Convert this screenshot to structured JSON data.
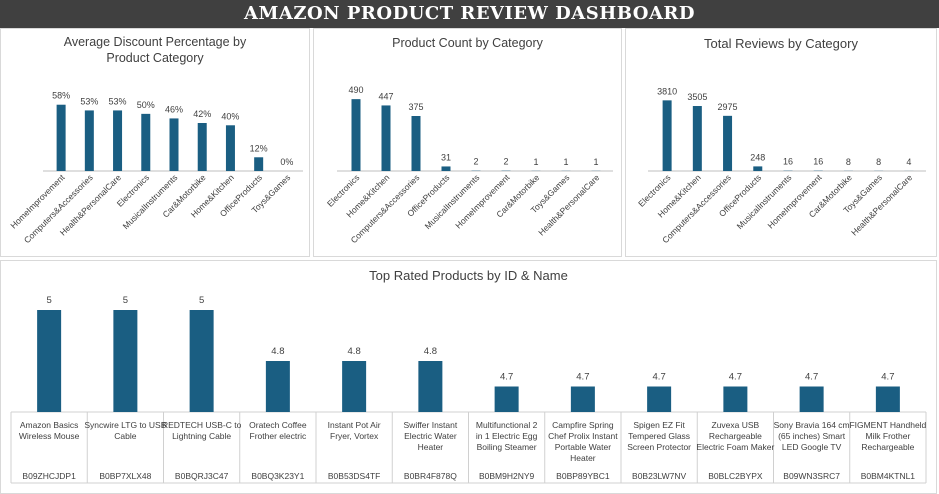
{
  "dashboard": {
    "title": "AMAZON PRODUCT REVIEW DASHBOARD"
  },
  "colors": {
    "bar": "#1a5e82",
    "title_bg": "#404040"
  },
  "chart_data": [
    {
      "id": "discount",
      "type": "bar",
      "title": "Average Discount Percentage by Product Category",
      "categories": [
        "HomeImprovement",
        "Computers&Accessories",
        "Health&PersonalCare",
        "Electronics",
        "MusicalInstruments",
        "Car&Motorbike",
        "Home&Kitchen",
        "OfficeProducts",
        "Toys&Games"
      ],
      "values": [
        58,
        53,
        53,
        50,
        46,
        42,
        40,
        12,
        0
      ],
      "labels": [
        "58%",
        "53%",
        "53%",
        "50%",
        "46%",
        "42%",
        "40%",
        "12%",
        "0%"
      ],
      "ylim": [
        0,
        70
      ],
      "grid": false,
      "legend": "none"
    },
    {
      "id": "count",
      "type": "bar",
      "title": "Product Count by  Category",
      "categories": [
        "Electronics",
        "Home&Kitchen",
        "Computers&Accessories",
        "OfficeProducts",
        "MusicalInstruments",
        "HomeImprovement",
        "Car&Motorbike",
        "Toys&Games",
        "Health&PersonalCare"
      ],
      "values": [
        490,
        447,
        375,
        31,
        2,
        2,
        1,
        1,
        1
      ],
      "labels": [
        "490",
        "447",
        "375",
        "31",
        "2",
        "2",
        "1",
        "1",
        "1"
      ],
      "ylim": [
        0,
        600
      ],
      "grid": false,
      "legend": "none"
    },
    {
      "id": "reviews",
      "type": "bar",
      "title": "Total Reviews by  Category",
      "categories": [
        "Electronics",
        "Home&Kitchen",
        "Computers&Accessories",
        "OfficeProducts",
        "MusicalInstruments",
        "HomeImprovement",
        "Car&Motorbike",
        "Toys&Games",
        "Health&PersonalCare"
      ],
      "values": [
        3810,
        3505,
        2975,
        248,
        16,
        16,
        8,
        8,
        4
      ],
      "labels": [
        "3810",
        "3505",
        "2975",
        "248",
        "16",
        "16",
        "8",
        "8",
        "4"
      ],
      "ylim": [
        0,
        4800
      ],
      "grid": false,
      "legend": "none"
    },
    {
      "id": "top",
      "type": "bar",
      "title": "Top Rated Products by ID & Name",
      "categories": [
        {
          "name": "Amazon Basics Wireless Mouse",
          "id": "B09ZHCJDP1"
        },
        {
          "name": "Syncwire LTG to USB Cable",
          "id": "B0BP7XLX48"
        },
        {
          "name": "REDTECH USB-C to Lightning Cable",
          "id": "B0BQRJ3C47"
        },
        {
          "name": "Oratech Coffee Frother electric",
          "id": "B0BQ3K23Y1"
        },
        {
          "name": "Instant Pot Air Fryer, Vortex",
          "id": "B0B53DS4TF"
        },
        {
          "name": "Swiffer Instant Electric Water Heater",
          "id": "B0BR4F878Q"
        },
        {
          "name": "Multifunctional 2 in 1 Electric Egg Boiling Steamer",
          "id": "B0BM9H2NY9"
        },
        {
          "name": "Campfire Spring Chef Prolix Instant Portable Water Heater",
          "id": "B0BP89YBC1"
        },
        {
          "name": "Spigen EZ Fit Tempered Glass Screen Protector",
          "id": "B0B23LW7NV"
        },
        {
          "name": "Zuvexa USB Rechargeable Electric Foam Maker",
          "id": "B0BLC2BYPX"
        },
        {
          "name": "Sony Bravia 164 cm (65 inches) Smart LED Google TV",
          "id": "B09WN3SRC7"
        },
        {
          "name": "FIGMENT Handheld Milk Frother Rechargeable",
          "id": "B0BM4KTNL1"
        }
      ],
      "values": [
        5,
        5,
        5,
        4.8,
        4.8,
        4.8,
        4.7,
        4.7,
        4.7,
        4.7,
        4.7,
        4.7
      ],
      "labels": [
        "5",
        "5",
        "5",
        "4.8",
        "4.8",
        "4.8",
        "4.7",
        "4.7",
        "4.7",
        "4.7",
        "4.7",
        "4.7"
      ],
      "ylim": [
        4.6,
        5.0
      ],
      "grid": false,
      "legend": "none"
    }
  ]
}
